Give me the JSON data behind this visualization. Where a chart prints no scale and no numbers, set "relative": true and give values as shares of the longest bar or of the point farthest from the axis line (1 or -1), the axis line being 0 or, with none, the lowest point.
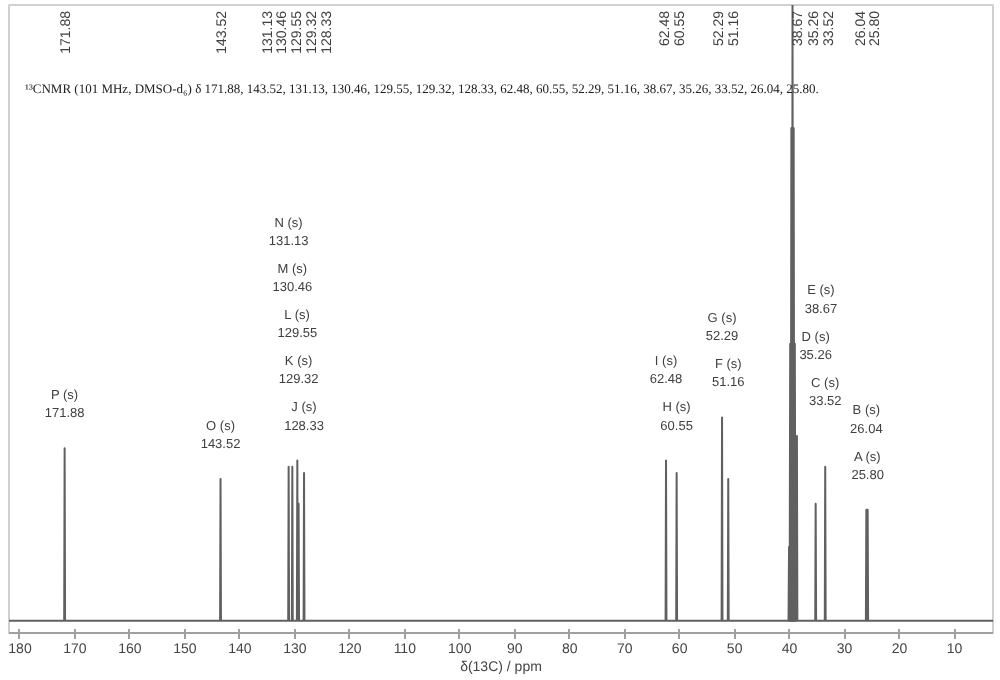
{
  "chart_data": {
    "type": "line",
    "relative": true,
    "xlabel": "δ(13C) / ppm",
    "xlim": [
      182,
      3
    ],
    "xticks": [
      180,
      170,
      160,
      150,
      140,
      130,
      120,
      110,
      100,
      90,
      80,
      70,
      60,
      50,
      40,
      30,
      20,
      10
    ],
    "grid": false,
    "line_style": "solid",
    "series": [
      {
        "color": "#606060",
        "x": [
          182,
          171.96,
          171.88,
          171.8,
          143.6,
          143.52,
          143.44,
          131.21,
          131.13,
          131.05,
          130.54,
          130.46,
          130.38,
          129.63,
          129.55,
          129.47,
          129.4,
          129.32,
          129.24,
          128.41,
          128.33,
          128.25,
          62.56,
          62.48,
          62.4,
          60.63,
          60.55,
          60.47,
          52.37,
          52.29,
          52.21,
          51.24,
          51.16,
          51.08,
          38.755,
          38.67,
          38.59,
          35.34,
          35.26,
          35.18,
          33.6,
          33.52,
          33.44,
          26.12,
          26.04,
          25.92,
          25.8,
          25.72,
          3
        ],
        "values": [
          0,
          0,
          0.28,
          0,
          0,
          0.23,
          0,
          0,
          0.25,
          0,
          0,
          0.25,
          0,
          0,
          0.26,
          0,
          0,
          0.19,
          0,
          0,
          0.24,
          0,
          0,
          0.26,
          0,
          0,
          0.24,
          0,
          0,
          0.33,
          0,
          0,
          0.23,
          0,
          0,
          0.3,
          0,
          0,
          0.19,
          0,
          0,
          0.25,
          0,
          0,
          0.18,
          0,
          0.18,
          0,
          0
        ]
      },
      {
        "color": "#606060",
        "x": [
          40.2,
          40.1,
          40.0,
          39.89,
          39.78,
          39.68,
          39.57,
          39.47,
          39.36,
          39.26,
          39.15,
          39.05,
          38.94,
          38.84,
          38.76
        ],
        "values": [
          0,
          0.12,
          0,
          0.45,
          0,
          0.8,
          0,
          1.0,
          0,
          0.8,
          0,
          0.45,
          0,
          0.12,
          0
        ]
      }
    ],
    "annotations": [
      "¹³CNMR (101 MHz, DMSO-d₆) δ 171.88, 143.52, 131.13, 130.46, 129.55, 129.32, 128.33, 62.48, 60.55, 52.29, 51.16, 38.67, 35.26, 33.52, 26.04, 25.80.",
      "171.88",
      "143.52",
      "131.13",
      "130.46",
      "129.55",
      "129.32",
      "128.33",
      "62.48",
      "60.55",
      "52.29",
      "51.16",
      "38.67",
      "35.26",
      "33.52",
      "26.04",
      "25.80",
      "P (s)\n171.88",
      "O (s)\n143.52",
      "N (s)\n131.13",
      "M (s)\n130.46",
      "L (s)\n129.55",
      "K (s)\n129.32",
      "J (s)\n128.33",
      "I (s)\n62.48",
      "H (s)\n60.55",
      "G (s)\n52.29",
      "F (s)\n51.16",
      "E (s)\n38.67",
      "D (s)\n35.26",
      "C (s)\n33.52",
      "B (s)\n26.04",
      "A (s)\n25.80"
    ]
  }
}
